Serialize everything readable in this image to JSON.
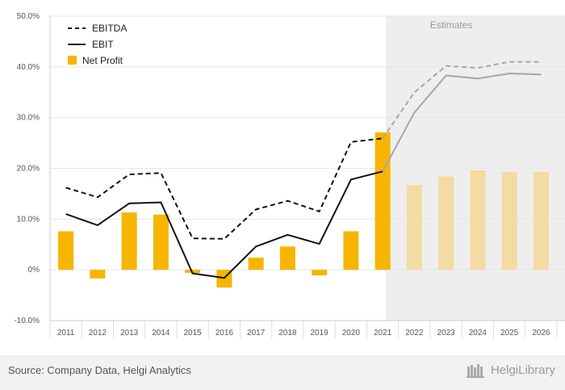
{
  "chart_data": {
    "type": "bar",
    "categories": [
      "2011",
      "2012",
      "2013",
      "2014",
      "2015",
      "2016",
      "2017",
      "2018",
      "2019",
      "2020",
      "2021",
      "2022",
      "2023",
      "2024",
      "2025",
      "2026"
    ],
    "estimates_from": "2022",
    "estimates_label": "Estimates",
    "ylim": [
      -10,
      50
    ],
    "yticks": [
      -10,
      0,
      10,
      20,
      30,
      40,
      50
    ],
    "ytick_labels": [
      "-10.0%",
      "0%",
      "10.0%",
      "20.0%",
      "30.0%",
      "40.0%",
      "50.0%"
    ],
    "series": [
      {
        "name": "EBITDA",
        "kind": "line",
        "style": "dashed",
        "values": [
          16.2,
          14.3,
          18.8,
          19.1,
          6.2,
          6.1,
          11.9,
          13.6,
          11.5,
          25.2,
          25.9,
          35.0,
          40.2,
          39.8,
          41.0,
          41.0
        ]
      },
      {
        "name": "EBIT",
        "kind": "line",
        "style": "solid",
        "values": [
          11.0,
          8.8,
          13.1,
          13.3,
          -0.7,
          -1.6,
          4.6,
          6.9,
          5.1,
          17.8,
          19.4,
          31.0,
          38.3,
          37.7,
          38.7,
          38.5
        ]
      },
      {
        "name": "Net Profit",
        "kind": "bar",
        "values": [
          7.6,
          -1.7,
          11.3,
          10.9,
          -0.6,
          -3.5,
          2.4,
          4.6,
          -1.1,
          7.6,
          27.1,
          16.7,
          18.4,
          19.6,
          19.3,
          19.3
        ]
      }
    ],
    "legend_position": "top-left",
    "grid": true,
    "colors": {
      "bar": "#f7b500",
      "bar_estimate": "#f3dba3",
      "line": "#111111",
      "line_estimate": "#a6a6a6",
      "estimate_band": "#eeeeee",
      "grid": "#e6e6e6"
    }
  },
  "footer": {
    "source": "Source: Company Data, Helgi Analytics",
    "logo_text": "HelgiLibrary"
  }
}
